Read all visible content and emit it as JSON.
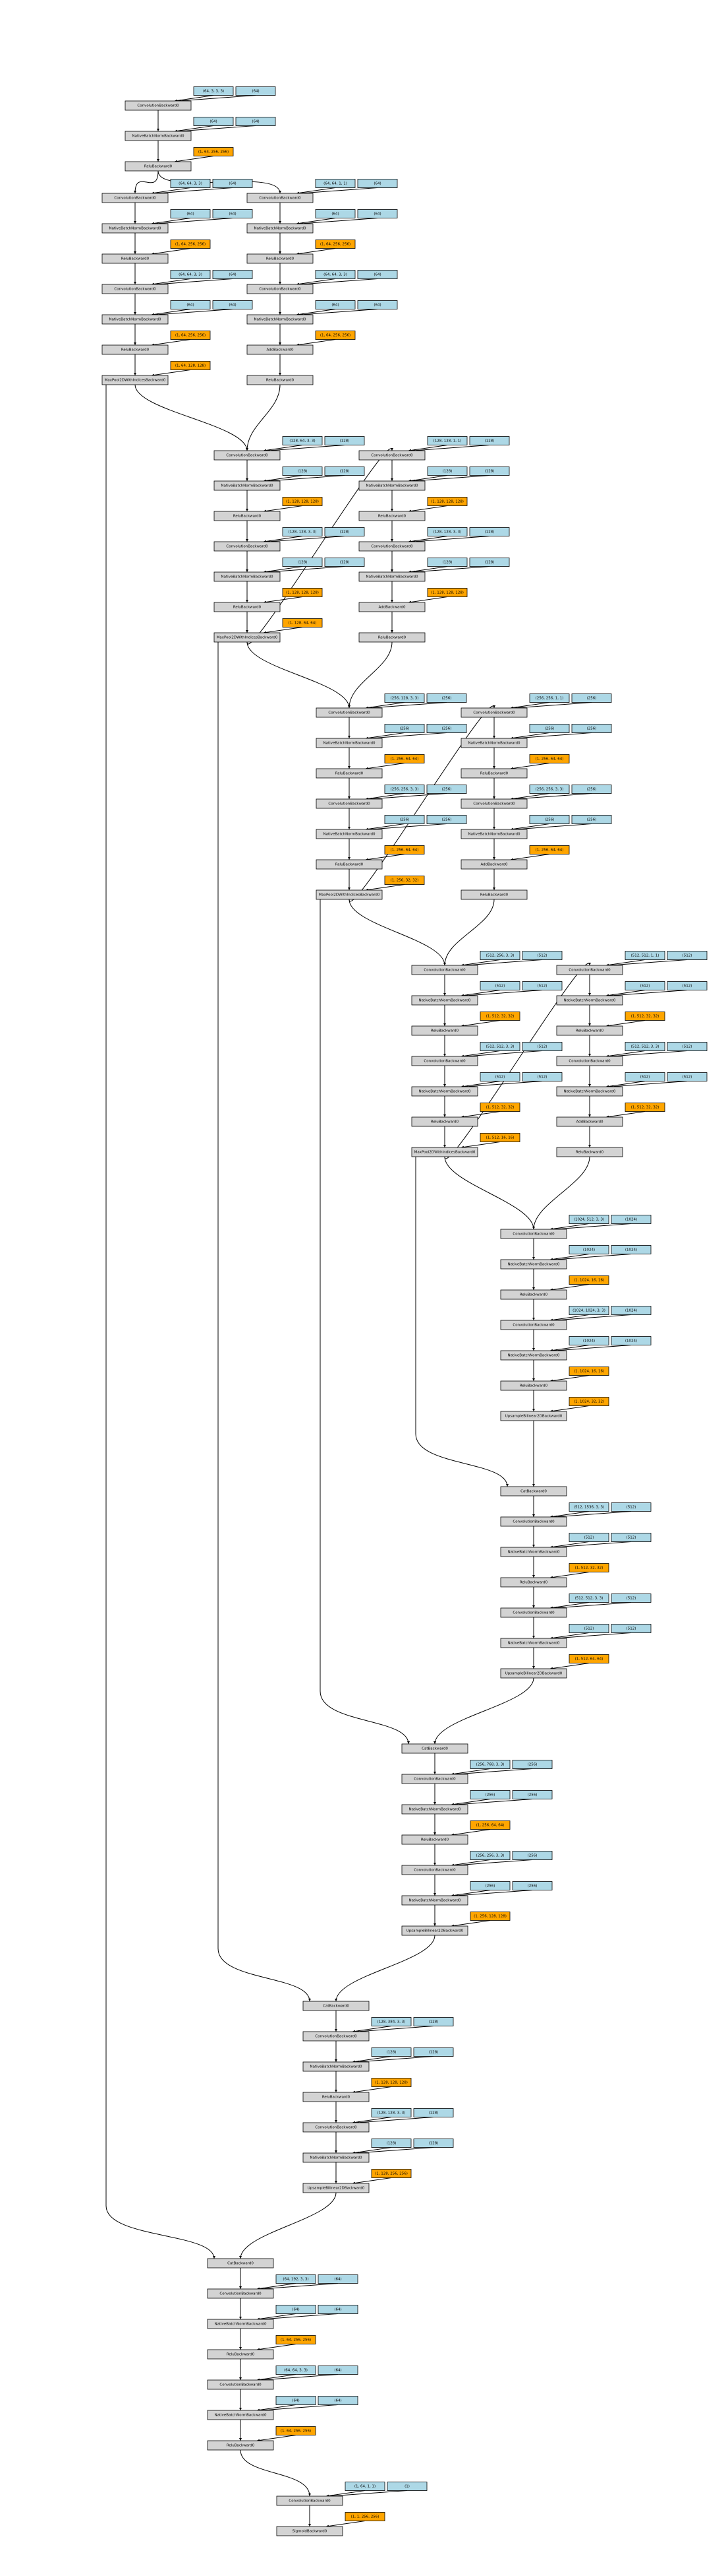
{
  "blocks": [
    {
      "rows": [
        {
          "op": "ConvolutionBackward0",
          "params": [
            "(64, 3, 3, 3)",
            "(64)"
          ]
        },
        {
          "op": "NativeBatchNormBackward0",
          "params": [
            "(64)",
            "(64)"
          ]
        },
        {
          "op": "ReluBackward0",
          "saved": [
            "(1, 64, 256, 256)"
          ]
        }
      ]
    },
    {
      "rows": [
        {
          "op": "ConvolutionBackward0",
          "params": [
            "(64, 64, 3, 3)",
            "(64)"
          ]
        },
        {
          "op": "NativeBatchNormBackward0",
          "params": [
            "(64)",
            "(64)"
          ]
        },
        {
          "op": "ReluBackward0",
          "saved": [
            "(1, 64, 256, 256)"
          ]
        },
        {
          "op": "ConvolutionBackward0",
          "params": [
            "(64, 64, 3, 3)",
            "(64)"
          ]
        },
        {
          "op": "NativeBatchNormBackward0",
          "params": [
            "(64)",
            "(64)"
          ]
        },
        {
          "op": "ReluBackward0",
          "saved": [
            "(1, 64, 256, 256)"
          ]
        },
        {
          "op": "MaxPool2DWithIndicesBackward0",
          "saved": [
            "(1, 64, 128, 128)"
          ]
        }
      ]
    },
    {
      "rows": [
        {
          "op": "ConvolutionBackward0",
          "params": [
            "(64, 64, 1, 1)",
            "(64)"
          ]
        },
        {
          "op": "NativeBatchNormBackward0",
          "params": [
            "(64)",
            "(64)"
          ]
        },
        {
          "op": "ReluBackward0",
          "saved": [
            "(1, 64, 256, 256)"
          ]
        },
        {
          "op": "ConvolutionBackward0",
          "params": [
            "(64, 64, 3, 3)",
            "(64)"
          ]
        },
        {
          "op": "NativeBatchNormBackward0",
          "params": [
            "(64)",
            "(64)"
          ]
        },
        {
          "op": "AddBackward0",
          "saved": [
            "(1, 64, 256, 256)"
          ]
        },
        {
          "op": "ReluBackward0"
        }
      ]
    },
    {
      "rows": [
        {
          "op": "ConvolutionBackward0",
          "params": [
            "(128, 64, 3, 3)",
            "(128)"
          ]
        },
        {
          "op": "NativeBatchNormBackward0",
          "params": [
            "(128)",
            "(128)"
          ]
        },
        {
          "op": "ReluBackward0",
          "saved": [
            "(1, 128, 128, 128)"
          ]
        },
        {
          "op": "ConvolutionBackward0",
          "params": [
            "(128, 128, 3, 3)",
            "(128)"
          ]
        },
        {
          "op": "NativeBatchNormBackward0",
          "params": [
            "(128)",
            "(128)"
          ]
        },
        {
          "op": "ReluBackward0",
          "saved": [
            "(1, 128, 128, 128)"
          ]
        },
        {
          "op": "MaxPool2DWithIndicesBackward0",
          "saved": [
            "(1, 128, 64, 64)"
          ]
        }
      ]
    },
    {
      "rows": [
        {
          "op": "ConvolutionBackward0",
          "params": [
            "(128, 128, 1, 1)",
            "(128)"
          ]
        },
        {
          "op": "NativeBatchNormBackward0",
          "params": [
            "(128)",
            "(128)"
          ]
        },
        {
          "op": "ReluBackward0",
          "saved": [
            "(1, 128, 128, 128)"
          ]
        },
        {
          "op": "ConvolutionBackward0",
          "params": [
            "(128, 128, 3, 3)",
            "(128)"
          ]
        },
        {
          "op": "NativeBatchNormBackward0",
          "params": [
            "(128)",
            "(128)"
          ]
        },
        {
          "op": "AddBackward0",
          "saved": [
            "(1, 128, 128, 128)"
          ]
        },
        {
          "op": "ReluBackward0"
        }
      ]
    },
    {
      "rows": [
        {
          "op": "ConvolutionBackward0",
          "params": [
            "(256, 128, 3, 3)",
            "(256)"
          ]
        },
        {
          "op": "NativeBatchNormBackward0",
          "params": [
            "(256)",
            "(256)"
          ]
        },
        {
          "op": "ReluBackward0",
          "saved": [
            "(1, 256, 64, 64)"
          ]
        },
        {
          "op": "ConvolutionBackward0",
          "params": [
            "(256, 256, 3, 3)",
            "(256)"
          ]
        },
        {
          "op": "NativeBatchNormBackward0",
          "params": [
            "(256)",
            "(256)"
          ]
        },
        {
          "op": "ReluBackward0",
          "saved": [
            "(1, 256, 64, 64)"
          ]
        },
        {
          "op": "MaxPool2DWithIndicesBackward0",
          "saved": [
            "(1, 256, 32, 32)"
          ]
        }
      ]
    },
    {
      "rows": [
        {
          "op": "ConvolutionBackward0",
          "params": [
            "(256, 256, 1, 1)",
            "(256)"
          ]
        },
        {
          "op": "NativeBatchNormBackward0",
          "params": [
            "(256)",
            "(256)"
          ]
        },
        {
          "op": "ReluBackward0",
          "saved": [
            "(1, 256, 64, 64)"
          ]
        },
        {
          "op": "ConvolutionBackward0",
          "params": [
            "(256, 256, 3, 3)",
            "(256)"
          ]
        },
        {
          "op": "NativeBatchNormBackward0",
          "params": [
            "(256)",
            "(256)"
          ]
        },
        {
          "op": "AddBackward0",
          "saved": [
            "(1, 256, 64, 64)"
          ]
        },
        {
          "op": "ReluBackward0"
        }
      ]
    },
    {
      "rows": [
        {
          "op": "ConvolutionBackward0",
          "params": [
            "(512, 256, 3, 3)",
            "(512)"
          ]
        },
        {
          "op": "NativeBatchNormBackward0",
          "params": [
            "(512)",
            "(512)"
          ]
        },
        {
          "op": "ReluBackward0",
          "saved": [
            "(1, 512, 32, 32)"
          ]
        },
        {
          "op": "ConvolutionBackward0",
          "params": [
            "(512, 512, 3, 3)",
            "(512)"
          ]
        },
        {
          "op": "NativeBatchNormBackward0",
          "params": [
            "(512)",
            "(512)"
          ]
        },
        {
          "op": "ReluBackward0",
          "saved": [
            "(1, 512, 32, 32)"
          ]
        },
        {
          "op": "MaxPool2DWithIndicesBackward0",
          "saved": [
            "(1, 512, 16, 16)"
          ]
        }
      ]
    },
    {
      "rows": [
        {
          "op": "ConvolutionBackward0",
          "params": [
            "(512, 512, 1, 1)",
            "(512)"
          ]
        },
        {
          "op": "NativeBatchNormBackward0",
          "params": [
            "(512)",
            "(512)"
          ]
        },
        {
          "op": "ReluBackward0",
          "saved": [
            "(1, 512, 32, 32)"
          ]
        },
        {
          "op": "ConvolutionBackward0",
          "params": [
            "(512, 512, 3, 3)",
            "(512)"
          ]
        },
        {
          "op": "NativeBatchNormBackward0",
          "params": [
            "(512)",
            "(512)"
          ]
        },
        {
          "op": "AddBackward0",
          "saved": [
            "(1, 512, 32, 32)"
          ]
        },
        {
          "op": "ReluBackward0"
        }
      ]
    },
    {
      "rows": [
        {
          "op": "ConvolutionBackward0",
          "params": [
            "(1024, 512, 3, 3)",
            "(1024)"
          ]
        },
        {
          "op": "NativeBatchNormBackward0",
          "params": [
            "(1024)",
            "(1024)"
          ]
        },
        {
          "op": "ReluBackward0",
          "saved": [
            "(1, 1024, 16, 16)"
          ]
        },
        {
          "op": "ConvolutionBackward0",
          "params": [
            "(1024, 1024, 3, 3)",
            "(1024)"
          ]
        },
        {
          "op": "NativeBatchNormBackward0",
          "params": [
            "(1024)",
            "(1024)"
          ]
        },
        {
          "op": "ReluBackward0",
          "saved": [
            "(1, 1024, 16, 16)"
          ]
        },
        {
          "op": "UpsampleBilinear2DBackward0",
          "saved": [
            "(1, 1024, 32, 32)"
          ]
        }
      ]
    },
    {
      "rows": [
        {
          "op": "CatBackward0"
        },
        {
          "op": "ConvolutionBackward0",
          "params": [
            "(512, 1536, 3, 3)",
            "(512)"
          ]
        },
        {
          "op": "NativeBatchNormBackward0",
          "params": [
            "(512)",
            "(512)"
          ]
        },
        {
          "op": "ReluBackward0",
          "saved": [
            "(1, 512, 32, 32)"
          ]
        },
        {
          "op": "ConvolutionBackward0",
          "params": [
            "(512, 512, 3, 3)",
            "(512)"
          ]
        },
        {
          "op": "NativeBatchNormBackward0",
          "params": [
            "(512)",
            "(512)"
          ]
        },
        {
          "op": "UpsampleBilinear2DBackward0",
          "saved": [
            "(1, 512, 64, 64)"
          ]
        }
      ]
    },
    {
      "rows": [
        {
          "op": "CatBackward0"
        },
        {
          "op": "ConvolutionBackward0",
          "params": [
            "(256, 768, 3, 3)",
            "(256)"
          ]
        },
        {
          "op": "NativeBatchNormBackward0",
          "params": [
            "(256)",
            "(256)"
          ]
        },
        {
          "op": "ReluBackward0",
          "saved": [
            "(1, 256, 64, 64)"
          ]
        },
        {
          "op": "ConvolutionBackward0",
          "params": [
            "(256, 256, 3, 3)",
            "(256)"
          ]
        },
        {
          "op": "NativeBatchNormBackward0",
          "params": [
            "(256)",
            "(256)"
          ]
        },
        {
          "op": "UpsampleBilinear2DBackward0",
          "saved": [
            "(1, 256, 128, 128)"
          ]
        }
      ]
    },
    {
      "rows": [
        {
          "op": "CatBackward0"
        },
        {
          "op": "ConvolutionBackward0",
          "params": [
            "(128, 384, 3, 3)",
            "(128)"
          ]
        },
        {
          "op": "NativeBatchNormBackward0",
          "params": [
            "(128)",
            "(128)"
          ]
        },
        {
          "op": "ReluBackward0",
          "saved": [
            "(1, 128, 128, 128)"
          ]
        },
        {
          "op": "ConvolutionBackward0",
          "params": [
            "(128, 128, 3, 3)",
            "(128)"
          ]
        },
        {
          "op": "NativeBatchNormBackward0",
          "params": [
            "(128)",
            "(128)"
          ]
        },
        {
          "op": "UpsampleBilinear2DBackward0",
          "saved": [
            "(1, 128, 256, 256)"
          ]
        }
      ]
    },
    {
      "rows": [
        {
          "op": "CatBackward0"
        },
        {
          "op": "ConvolutionBackward0",
          "params": [
            "(64, 192, 3, 3)",
            "(64)"
          ]
        },
        {
          "op": "NativeBatchNormBackward0",
          "params": [
            "(64)",
            "(64)"
          ]
        },
        {
          "op": "ReluBackward0",
          "saved": [
            "(1, 64, 256, 256)"
          ]
        },
        {
          "op": "ConvolutionBackward0",
          "params": [
            "(64, 64, 3, 3)",
            "(64)"
          ]
        },
        {
          "op": "NativeBatchNormBackward0",
          "params": [
            "(64)",
            "(64)"
          ]
        },
        {
          "op": "ReluBackward0",
          "saved": [
            "(1, 64, 256, 256)"
          ]
        }
      ]
    },
    {
      "rows": [
        {
          "op": "ConvolutionBackward0",
          "params": [
            "(1, 64, 1, 1)",
            "(1)"
          ]
        },
        {
          "op": "SigmoidBackward0",
          "saved": [
            "(1, 1, 256, 256)"
          ]
        }
      ]
    }
  ]
}
